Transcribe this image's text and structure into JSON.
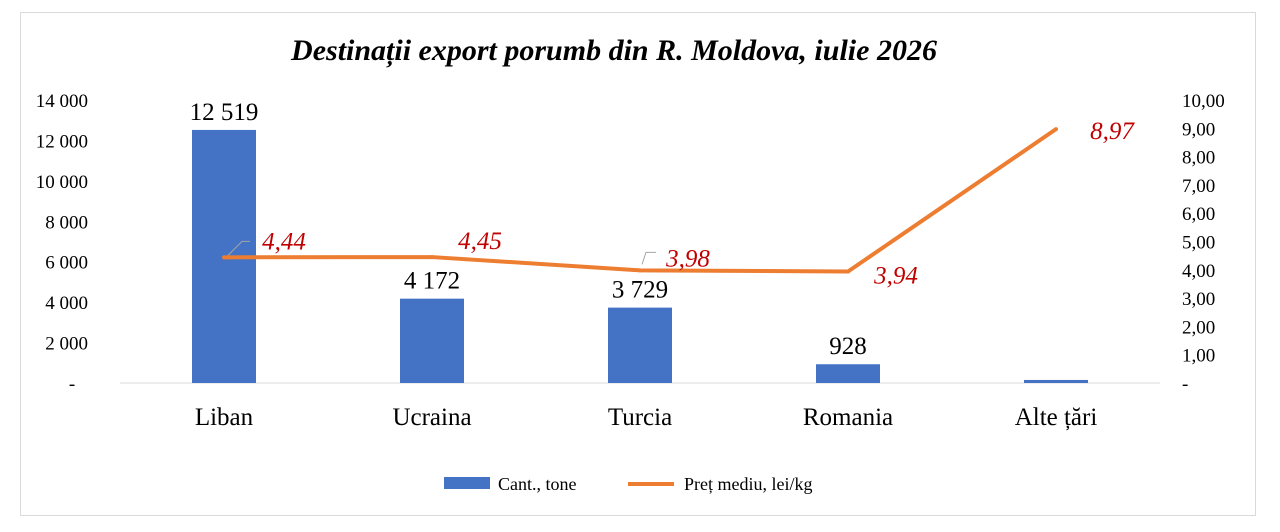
{
  "chart_data": {
    "type": "bar",
    "title": "Destinații export porumb din R. Moldova, iulie 2026",
    "categories": [
      "Liban",
      "Ucraina",
      "Turcia",
      "Romania",
      "Alte țări"
    ],
    "series": [
      {
        "name": "Cant., tone",
        "type": "bar",
        "axis": "left",
        "color": "#4472c4",
        "values": [
          12519,
          4172,
          3729,
          928,
          150
        ],
        "labels": [
          "12 519",
          "4 172",
          "3 729",
          "928",
          ""
        ]
      },
      {
        "name": "Preț mediu, lei/kg",
        "type": "line",
        "axis": "right",
        "color": "#ed7d31",
        "values": [
          4.44,
          4.45,
          3.98,
          3.94,
          8.97
        ],
        "labels": [
          "4,44",
          "4,45",
          "3,98",
          "3,94",
          "8,97"
        ]
      }
    ],
    "left_axis": {
      "ylim": [
        0,
        14000
      ],
      "ticks": [
        0,
        2000,
        4000,
        6000,
        8000,
        10000,
        12000,
        14000
      ],
      "tick_labels": [
        "-",
        "2 000",
        "4 000",
        "6 000",
        "8 000",
        "10 000",
        "12 000",
        "14 000"
      ]
    },
    "right_axis": {
      "ylim": [
        0,
        10
      ],
      "ticks": [
        0,
        1,
        2,
        3,
        4,
        5,
        6,
        7,
        8,
        9,
        10
      ],
      "tick_labels": [
        "-",
        "1,00",
        "2,00",
        "3,00",
        "4,00",
        "5,00",
        "6,00",
        "7,00",
        "8,00",
        "9,00",
        "10,00"
      ]
    },
    "grid": false,
    "legend": "bottom"
  }
}
